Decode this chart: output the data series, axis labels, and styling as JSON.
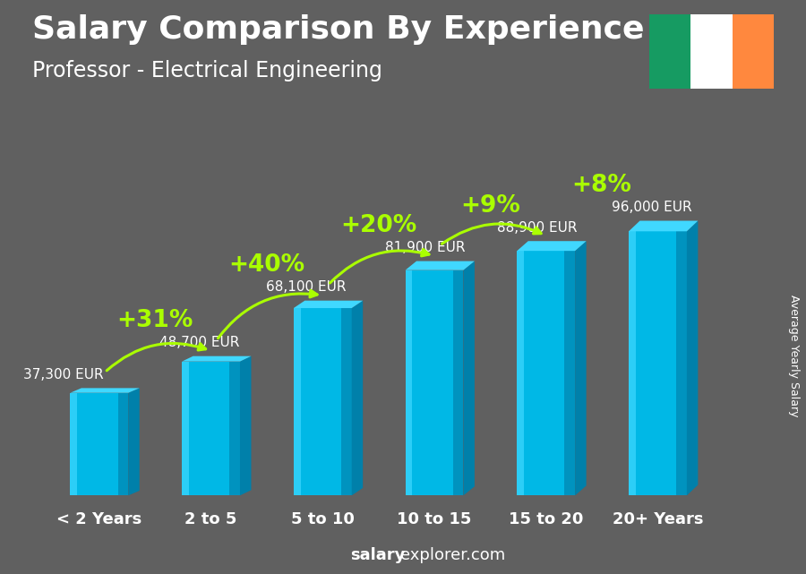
{
  "title": "Salary Comparison By Experience",
  "subtitle": "Professor - Electrical Engineering",
  "categories": [
    "< 2 Years",
    "2 to 5",
    "5 to 10",
    "10 to 15",
    "15 to 20",
    "20+ Years"
  ],
  "values": [
    37300,
    48700,
    68100,
    81900,
    88900,
    96000
  ],
  "labels": [
    "37,300 EUR",
    "48,700 EUR",
    "68,100 EUR",
    "81,900 EUR",
    "88,900 EUR",
    "96,000 EUR"
  ],
  "pct_labels": [
    "+31%",
    "+40%",
    "+20%",
    "+9%",
    "+8%"
  ],
  "bar_face_color": "#00b8e6",
  "bar_left_color": "#40d8ff",
  "bar_right_color": "#0080aa",
  "bar_top_color": "#40d8ff",
  "bg_color": "#606060",
  "text_color": "#ffffff",
  "green_color": "#aaff00",
  "ylabel": "Average Yearly Salary",
  "footer_bold": "salary",
  "footer_rest": "explorer.com",
  "ireland_flag_colors": [
    "#169b62",
    "#ffffff",
    "#ff883e"
  ],
  "title_fontsize": 26,
  "subtitle_fontsize": 17,
  "label_fontsize": 11,
  "pct_fontsize": 19,
  "cat_fontsize": 13,
  "footer_fontsize": 13
}
